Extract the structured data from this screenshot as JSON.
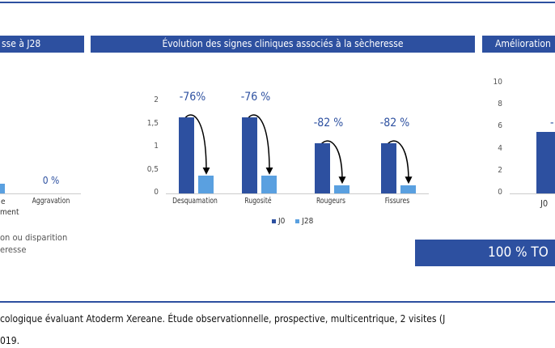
{
  "headers": {
    "left": "sse à J28",
    "middle": "Évolution des signes cliniques associés à la sècheresse",
    "right": "Amélioration"
  },
  "left_panel": {
    "value_label": "0 %",
    "category": "Aggravation",
    "partial_cat_line1": "e",
    "partial_cat_line2": "ment",
    "caption_line1": "on ou disparition",
    "caption_line2": "eresse"
  },
  "chart_data": [
    {
      "type": "bar",
      "title": "Évolution des signes cliniques associés à la sècheresse",
      "categories": [
        "Desquamation",
        "Rugosité",
        "Rougeurs",
        "Fissures"
      ],
      "series": [
        {
          "name": "J0",
          "values": [
            1.65,
            1.65,
            1.08,
            1.08
          ],
          "color": "#2d50a0"
        },
        {
          "name": "J28",
          "values": [
            0.38,
            0.38,
            0.18,
            0.18
          ],
          "color": "#5aa0e0"
        }
      ],
      "annotations": [
        "-76%",
        "-76 %",
        "-82 %",
        "-82 %"
      ],
      "yticks": [
        "0",
        "0,5",
        "1",
        "1,5",
        "2"
      ],
      "ylim": [
        0,
        2
      ],
      "legend": "bottom"
    },
    {
      "type": "bar",
      "title": "Amélioration",
      "categories": [
        "J0"
      ],
      "values": [
        5.6
      ],
      "yticks": [
        "0",
        "2",
        "4",
        "6",
        "8",
        "10"
      ],
      "ylim": [
        0,
        10
      ],
      "annotation": "-"
    }
  ],
  "banner": "100 % TO",
  "footer": {
    "line1": "cologique évaluant Atoderm Xereane. Étude observationnelle, prospective, multicentrique, 2 visites (J",
    "line2": "019."
  }
}
